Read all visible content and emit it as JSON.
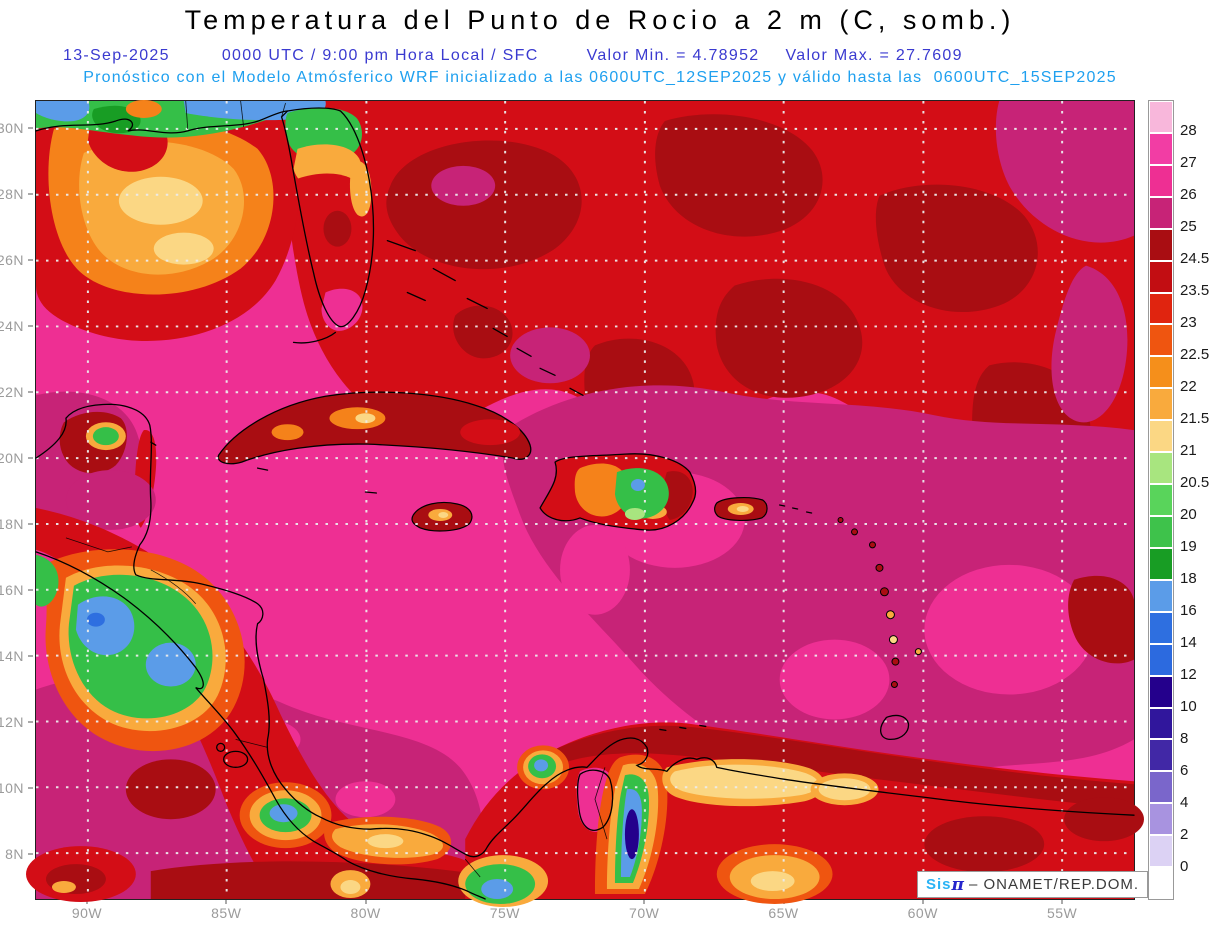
{
  "title": "Temperatura del Punto de Rocio a 2 m (C, somb.)",
  "subtitle": {
    "date": "13-Sep-2025",
    "session": "0000 UTC / 9:00 pm Hora Local / SFC",
    "min": "Valor Min. = 4.78952",
    "max": "Valor Max. = 27.7609",
    "forecast": "Pronóstico con el Modelo Atmósferico WRF inicializado a las 0600UTC_12SEP2025 y válido hasta las  0600UTC_15SEP2025"
  },
  "colors": {
    "title_black": "#000000",
    "subtitle_blue": "#3a3ad0",
    "forecast_blue": "#1fa0ef",
    "axis_gray": "#9b9b9b"
  },
  "map": {
    "lat_labels": [
      "30N",
      "28N",
      "26N",
      "24N",
      "22N",
      "20N",
      "18N",
      "16N",
      "14N",
      "12N",
      "10N",
      "8N"
    ],
    "lon_labels": [
      "90W",
      "85W",
      "80W",
      "75W",
      "70W",
      "65W",
      "60W",
      "55W"
    ]
  },
  "colorbar": {
    "blocks": [
      {
        "color": "#f8b7db",
        "label": "28"
      },
      {
        "color": "#f23da4",
        "label": "27"
      },
      {
        "color": "#ee2f93",
        "label": "26"
      },
      {
        "color": "#c72377",
        "label": "25"
      },
      {
        "color": "#a90d12",
        "label": "24.5"
      },
      {
        "color": "#c20d12",
        "label": "23.5"
      },
      {
        "color": "#e0240f",
        "label": "23"
      },
      {
        "color": "#ef5510",
        "label": "22.5"
      },
      {
        "color": "#f58f1b",
        "label": "22"
      },
      {
        "color": "#f9aa3d",
        "label": "21.5"
      },
      {
        "color": "#fbd784",
        "label": "21"
      },
      {
        "color": "#a8e57f",
        "label": "20.5"
      },
      {
        "color": "#59d45b",
        "label": "20"
      },
      {
        "color": "#3ec24b",
        "label": "19"
      },
      {
        "color": "#189d24",
        "label": "18"
      },
      {
        "color": "#5b9ce8",
        "label": "16"
      },
      {
        "color": "#2e6fe0",
        "label": "14"
      },
      {
        "color": "#2c6adf",
        "label": "12"
      },
      {
        "color": "#24008c",
        "label": "10"
      },
      {
        "color": "#30169c",
        "label": "8"
      },
      {
        "color": "#4128a6",
        "label": "6"
      },
      {
        "color": "#7a66cb",
        "label": "4"
      },
      {
        "color": "#a893e0",
        "label": "2"
      },
      {
        "color": "#dcd2f4",
        "label": "0"
      },
      {
        "color": "#ffffff",
        "label": ""
      }
    ]
  },
  "watermark": {
    "sis": "Sis",
    "pi": "π",
    "rest": "– ONAMET/REP.DOM."
  }
}
